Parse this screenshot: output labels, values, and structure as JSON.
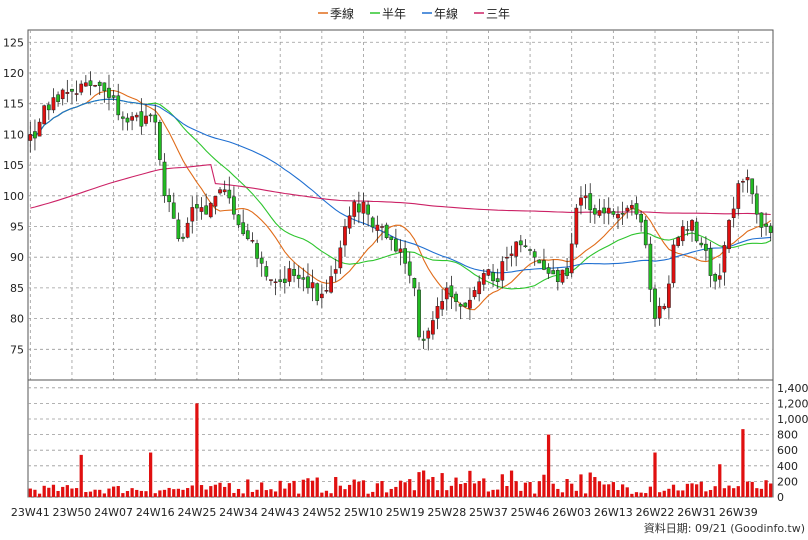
{
  "legend": [
    {
      "label": "季線",
      "color": "#e06c1a"
    },
    {
      "label": "半年",
      "color": "#2ec52e"
    },
    {
      "label": "年線",
      "color": "#1f6fd1"
    },
    {
      "label": "三年",
      "color": "#cc2266"
    }
  ],
  "source_label": "資料日期: 09/21 (Goodinfo.tw)",
  "chart_data": [
    {
      "type": "candlestick",
      "title": "",
      "ylim": [
        70,
        127
      ],
      "y_ticks": [
        75,
        80,
        85,
        90,
        95,
        100,
        105,
        110,
        115,
        120,
        125
      ],
      "x_ticks": [
        "23W41",
        "23W50",
        "24W07",
        "24W16",
        "24W25",
        "24W34",
        "24W43",
        "24W52",
        "25W10",
        "25W19",
        "25W28",
        "25W37",
        "25W46",
        "26W03",
        "26W13",
        "26W22",
        "26W31",
        "26W39"
      ],
      "grid": true,
      "anchors": [
        {
          "i": 0,
          "c": 110
        },
        {
          "i": 2,
          "c": 112
        },
        {
          "i": 5,
          "c": 116
        },
        {
          "i": 9,
          "c": 117
        },
        {
          "i": 14,
          "c": 118
        },
        {
          "i": 17,
          "c": 116
        },
        {
          "i": 21,
          "c": 112
        },
        {
          "i": 25,
          "c": 113
        },
        {
          "i": 27,
          "c": 112
        },
        {
          "i": 29,
          "c": 100
        },
        {
          "i": 32,
          "c": 93
        },
        {
          "i": 36,
          "c": 98
        },
        {
          "i": 38,
          "c": 97
        },
        {
          "i": 41,
          "c": 101
        },
        {
          "i": 44,
          "c": 97
        },
        {
          "i": 47,
          "c": 93
        },
        {
          "i": 50,
          "c": 89
        },
        {
          "i": 53,
          "c": 86
        },
        {
          "i": 57,
          "c": 87
        },
        {
          "i": 60,
          "c": 85
        },
        {
          "i": 63,
          "c": 84
        },
        {
          "i": 66,
          "c": 88
        },
        {
          "i": 68,
          "c": 95
        },
        {
          "i": 70,
          "c": 99
        },
        {
          "i": 73,
          "c": 97
        },
        {
          "i": 76,
          "c": 95
        },
        {
          "i": 79,
          "c": 91
        },
        {
          "i": 81,
          "c": 89
        },
        {
          "i": 83,
          "c": 85
        },
        {
          "i": 84,
          "c": 77
        },
        {
          "i": 86,
          "c": 78
        },
        {
          "i": 88,
          "c": 82
        },
        {
          "i": 90,
          "c": 85
        },
        {
          "i": 93,
          "c": 82
        },
        {
          "i": 95,
          "c": 83
        },
        {
          "i": 97,
          "c": 86
        },
        {
          "i": 99,
          "c": 88
        },
        {
          "i": 101,
          "c": 86
        },
        {
          "i": 103,
          "c": 90
        },
        {
          "i": 106,
          "c": 92
        },
        {
          "i": 109,
          "c": 90
        },
        {
          "i": 111,
          "c": 88
        },
        {
          "i": 114,
          "c": 86
        },
        {
          "i": 116,
          "c": 87
        },
        {
          "i": 118,
          "c": 98
        },
        {
          "i": 120,
          "c": 100
        },
        {
          "i": 122,
          "c": 97
        },
        {
          "i": 125,
          "c": 98
        },
        {
          "i": 127,
          "c": 97
        },
        {
          "i": 129,
          "c": 98
        },
        {
          "i": 131,
          "c": 97
        },
        {
          "i": 133,
          "c": 92
        },
        {
          "i": 135,
          "c": 80
        },
        {
          "i": 137,
          "c": 82
        },
        {
          "i": 139,
          "c": 92
        },
        {
          "i": 141,
          "c": 95
        },
        {
          "i": 143,
          "c": 96
        },
        {
          "i": 145,
          "c": 92
        },
        {
          "i": 147,
          "c": 87
        },
        {
          "i": 149,
          "c": 87
        },
        {
          "i": 151,
          "c": 96
        },
        {
          "i": 153,
          "c": 102
        },
        {
          "i": 155,
          "c": 103
        },
        {
          "i": 157,
          "c": 97
        },
        {
          "i": 159,
          "c": 95
        },
        {
          "i": 160,
          "c": 94
        }
      ]
    },
    {
      "type": "bar",
      "title": "",
      "ylim": [
        0,
        1500
      ],
      "y_ticks": [
        0,
        200,
        400,
        600,
        800,
        1000,
        1200,
        1400
      ],
      "y_tick_labels": [
        "0",
        "200",
        "400",
        "600",
        "800",
        "1,000",
        "1,200",
        "1,400"
      ],
      "volume_spikes": [
        {
          "i": 11,
          "v": 540
        },
        {
          "i": 26,
          "v": 570
        },
        {
          "i": 36,
          "v": 1200
        },
        {
          "i": 112,
          "v": 800
        },
        {
          "i": 135,
          "v": 570
        },
        {
          "i": 149,
          "v": 420
        },
        {
          "i": 154,
          "v": 870
        }
      ],
      "volume_base": [
        120,
        220,
        300,
        180
      ]
    }
  ]
}
